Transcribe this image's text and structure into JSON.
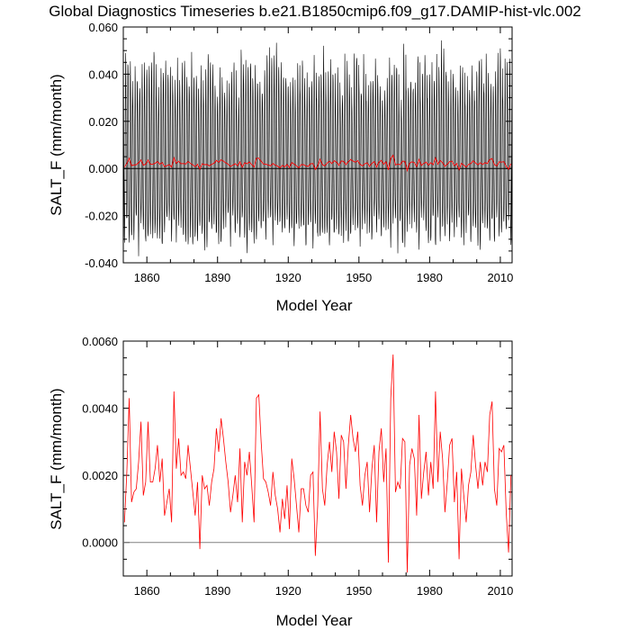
{
  "chart_data": [
    {
      "type": "line",
      "title": "Global Diagnostics Timeseries b.e21.B1850cmip6.f09_g17.DAMIP-hist-vlc.002",
      "xlabel": "Model Year",
      "ylabel": "SALT_F (mm/month)",
      "xlim": [
        1850,
        2015
      ],
      "ylim": [
        -0.04,
        0.06
      ],
      "xticks": [
        1860,
        1890,
        1920,
        1950,
        1980,
        2010
      ],
      "xtick_labels": [
        "1860",
        "1890",
        "1920",
        "1950",
        "1980",
        "2010"
      ],
      "yticks": [
        -0.04,
        -0.02,
        0.0,
        0.02,
        0.04,
        0.06
      ],
      "ytick_labels": [
        "-0.040",
        "-0.020",
        "0.000",
        "0.020",
        "0.040",
        "0.060"
      ],
      "reference_line": 0,
      "colors": {
        "monthly": "#000000",
        "annual": "#ff0000",
        "reference": "#000000"
      },
      "series": [
        {
          "name": "",
          "description_visual": "monthly values oscillating between about -0.035 and 0.055 each year",
          "annual_cycle_envelope": {
            "max_range": [
              0.03,
              0.056
            ],
            "min_range": [
              -0.037,
              -0.022
            ]
          }
        },
        {
          "name": "",
          "ref": "annual"
        }
      ]
    },
    {
      "type": "line",
      "title": "",
      "xlabel": "Model Year",
      "ylabel": "SALT_F (mm/month)",
      "xlim": [
        1850,
        2015
      ],
      "ylim": [
        -0.001,
        0.006
      ],
      "xticks": [
        1860,
        1890,
        1920,
        1950,
        1980,
        2010
      ],
      "xtick_labels": [
        "1860",
        "1890",
        "1920",
        "1950",
        "1980",
        "2010"
      ],
      "yticks": [
        0.0,
        0.002,
        0.004,
        0.006
      ],
      "ytick_labels": [
        "0.0000",
        "0.0020",
        "0.0040",
        "0.0060"
      ],
      "reference_line": 0,
      "colors": {
        "annual": "#ff0000",
        "reference": "#808080"
      },
      "series": [
        {
          "name": "",
          "x_start": 1850,
          "x_step": 1,
          "values": [
            0.0006,
            0.0021,
            0.0043,
            0.0012,
            0.0015,
            0.0016,
            0.0024,
            0.0036,
            0.0014,
            0.0018,
            0.0036,
            0.0018,
            0.0018,
            0.0022,
            0.0029,
            0.0018,
            0.0025,
            0.0008,
            0.0012,
            0.0016,
            0.0006,
            0.0045,
            0.0022,
            0.0031,
            0.002,
            0.0021,
            0.0019,
            0.0029,
            0.0022,
            0.0015,
            0.0008,
            0.0018,
            -0.0002,
            0.002,
            0.0016,
            0.0017,
            0.0011,
            0.0018,
            0.0022,
            0.0034,
            0.0027,
            0.0037,
            0.0031,
            0.0024,
            0.0018,
            0.0009,
            0.0014,
            0.002,
            0.0012,
            0.0028,
            0.0006,
            0.0024,
            0.002,
            0.0027,
            0.0017,
            0.0006,
            0.0043,
            0.0044,
            0.003,
            0.0019,
            0.0018,
            0.0015,
            0.0011,
            0.0021,
            0.0014,
            0.001,
            0.0003,
            0.0013,
            0.0007,
            0.0017,
            0.0004,
            0.0025,
            0.0019,
            0.0011,
            0.0003,
            0.0016,
            0.0016,
            0.0011,
            0.0009,
            0.002,
            0.0021,
            -0.0004,
            0.0011,
            0.0039,
            0.0016,
            0.0011,
            0.0023,
            0.003,
            0.0021,
            0.0033,
            0.0027,
            0.0013,
            0.0032,
            0.003,
            0.0016,
            0.0029,
            0.0038,
            0.0031,
            0.0027,
            0.0033,
            0.0017,
            0.0011,
            0.002,
            0.0024,
            0.0009,
            0.0022,
            0.0029,
            0.0006,
            0.0027,
            0.0034,
            0.0018,
            0.0028,
            -0.0006,
            0.0043,
            0.0056,
            0.0015,
            0.0018,
            0.0016,
            0.0031,
            0.003,
            -0.0009,
            0.0023,
            0.0028,
            0.0025,
            0.0008,
            0.0038,
            0.0013,
            0.0021,
            0.0027,
            0.0014,
            0.0024,
            0.0016,
            0.0045,
            0.0018,
            0.0033,
            0.0025,
            0.0009,
            0.0018,
            0.0029,
            0.0031,
            0.0012,
            0.0021,
            -0.0005,
            0.0022,
            0.0014,
            0.0006,
            0.0017,
            0.0021,
            0.0032,
            0.0023,
            0.0016,
            0.0024,
            0.0017,
            0.0024,
            0.0021,
            0.0038,
            0.0042,
            0.0016,
            0.0011,
            0.0028,
            0.0027,
            0.0029,
            0.0009,
            -0.0003,
            0.002
          ]
        }
      ]
    }
  ]
}
